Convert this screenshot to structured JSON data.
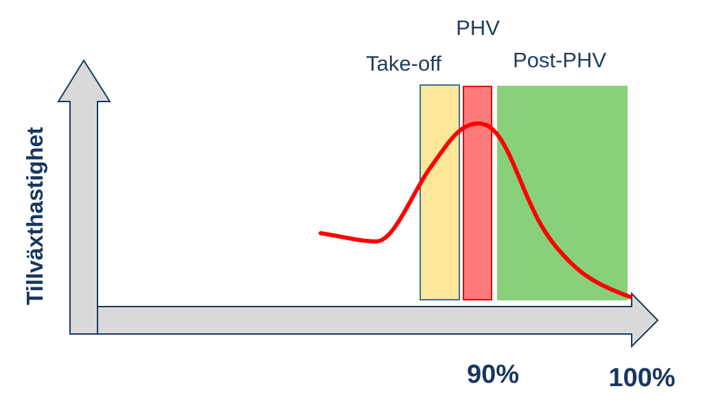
{
  "axes": {
    "y_label": "Tillväxthastighet"
  },
  "phases": [
    {
      "label": "Take-off"
    },
    {
      "label": "PHV"
    },
    {
      "label": "Post-PHV"
    }
  ],
  "x_markers": [
    {
      "label": "90%"
    },
    {
      "label": "100%"
    }
  ]
}
